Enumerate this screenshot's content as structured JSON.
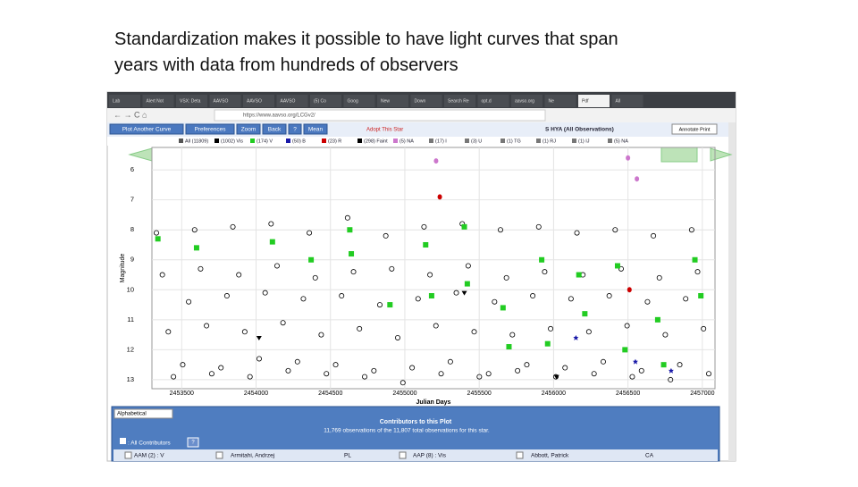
{
  "slide": {
    "title_lines": [
      "Standardization makes it possible to have light curves that span",
      "years with data from hundreds of observers"
    ]
  },
  "browser": {
    "tabs": [
      "Lab",
      "Alert Not",
      "VSX: Deta",
      "AAVSO",
      "AAVSO",
      "AAVSO",
      "(5) Co",
      "Goog",
      "New",
      "Down",
      "Search Re",
      "opt.d",
      "aavso.org",
      "Ne",
      "Pdf",
      "All"
    ],
    "address": "https://www.aavso.org/LCGv2/"
  },
  "toolbar": {
    "buttons": [
      "Plot Another Curve",
      "Preferences",
      "Zoom",
      "Back",
      "?",
      "Mean"
    ],
    "adopt": "Adopt This Star",
    "star": "S HYA (All Observations)",
    "print": "Annotate Print"
  },
  "legend_extra": [
    "All (11809)",
    "(17) I",
    "(3) U",
    "(1) TG",
    "(1) RJ",
    "(1) IJ",
    "(5) NA"
  ],
  "chart_data": {
    "type": "scatter",
    "ylabel": "Magnitude",
    "xlabel": "Julian Days",
    "xlim": [
      2453300,
      2457085
    ],
    "ylim": [
      13.3,
      5.4
    ],
    "xticks": [
      2453500,
      2454000,
      2454500,
      2455000,
      2455500,
      2456000,
      2456500,
      2457000
    ],
    "yticks": [
      6,
      7,
      8,
      9,
      10,
      11,
      12,
      13
    ],
    "grid": true,
    "series": [
      {
        "name": "(1002) Vis",
        "color": "#000000",
        "marker": "circle",
        "x": [
          2453330,
          2453370,
          2453410,
          2453445,
          2453507,
          2453547,
          2453587,
          2453627,
          2453667,
          2453702,
          2453764,
          2453804,
          2453844,
          2453884,
          2453924,
          2453959,
          2454021,
          2454061,
          2454101,
          2454141,
          2454181,
          2454216,
          2454278,
          2454318,
          2454358,
          2454398,
          2454438,
          2454473,
          2454535,
          2454575,
          2454615,
          2454655,
          2454695,
          2454730,
          2454792,
          2454832,
          2454872,
          2454912,
          2454952,
          2454987,
          2455049,
          2455089,
          2455129,
          2455169,
          2455209,
          2455244,
          2455306,
          2455346,
          2455386,
          2455426,
          2455466,
          2455501,
          2455563,
          2455603,
          2455643,
          2455683,
          2455723,
          2455758,
          2455820,
          2455860,
          2455900,
          2455940,
          2455980,
          2456015,
          2456077,
          2456117,
          2456157,
          2456197,
          2456237,
          2456272,
          2456334,
          2456374,
          2456414,
          2456454,
          2456494,
          2456529,
          2456591,
          2456631,
          2456671,
          2456711,
          2456751,
          2456786,
          2456848,
          2456888,
          2456928,
          2456968,
          2457008,
          2457043
        ],
        "values": [
          8.1,
          9.5,
          11.4,
          12.9,
          12.5,
          10.4,
          8.0,
          9.3,
          11.2,
          12.8,
          12.6,
          10.2,
          7.9,
          9.5,
          11.4,
          12.9,
          12.3,
          10.1,
          7.8,
          9.2,
          11.1,
          12.7,
          12.4,
          10.3,
          8.1,
          9.6,
          11.5,
          12.8,
          12.5,
          10.2,
          7.6,
          9.4,
          11.3,
          12.9,
          12.7,
          10.5,
          8.2,
          9.3,
          11.6,
          13.1,
          12.6,
          10.3,
          7.9,
          9.5,
          11.2,
          12.8,
          12.4,
          10.1,
          7.8,
          9.2,
          11.4,
          12.9,
          12.8,
          10.4,
          8.0,
          9.6,
          11.5,
          12.7,
          12.5,
          10.2,
          7.9,
          9.4,
          11.3,
          12.9,
          12.6,
          10.3,
          8.1,
          9.5,
          11.4,
          12.8,
          12.4,
          10.2,
          8.0,
          9.3,
          11.2,
          12.9,
          12.7,
          10.4,
          8.2,
          9.6,
          11.5,
          13.0,
          12.5,
          10.3,
          8.0,
          9.4,
          11.3,
          12.8
        ]
      },
      {
        "name": "(174) V",
        "color": "#22cc22",
        "marker": "square",
        "x": [
          2453340,
          2453600,
          2454110,
          2454370,
          2454630,
          2454640,
          2454900,
          2455140,
          2455180,
          2455400,
          2455420,
          2455660,
          2455700,
          2455920,
          2455960,
          2456170,
          2456210,
          2456430,
          2456480,
          2456700,
          2456740,
          2456950,
          2456990
        ],
        "values": [
          8.3,
          8.6,
          8.4,
          9.0,
          8.0,
          8.8,
          10.5,
          8.5,
          10.2,
          7.9,
          9.8,
          10.6,
          11.9,
          9.0,
          11.8,
          9.5,
          10.8,
          9.2,
          12.0,
          11.0,
          12.5,
          9.0,
          10.2
        ]
      },
      {
        "name": "(50) B",
        "color": "#1a1aa8",
        "marker": "star",
        "x": [
          2456150,
          2456550,
          2456790
        ],
        "values": [
          11.6,
          12.4,
          12.7
        ]
      },
      {
        "name": "(23) R",
        "color": "#cc0000",
        "marker": "dot",
        "x": [
          2455235,
          2456510
        ],
        "values": [
          6.9,
          10.0
        ]
      },
      {
        "name": "(298) Faint",
        "color": "#000000",
        "marker": "triangle",
        "x": [
          2454020,
          2455400,
          2456020
        ],
        "values": [
          11.6,
          10.1,
          12.9
        ]
      },
      {
        "name": "(5) NA",
        "color": "#cc77cc",
        "marker": "dot",
        "x": [
          2455210,
          2456500,
          2456560
        ],
        "values": [
          5.7,
          5.6,
          6.3
        ]
      }
    ]
  },
  "contributors": {
    "sort": "Alphabetical",
    "title": "Contributors to this Plot",
    "summary": "11,769 observations of the 11,807 total observations for this star.",
    "all": ": All Contributors",
    "help": "?",
    "row": [
      "AAM (2) : V",
      "Armitahi, Andrzej",
      "PL",
      "AAP (8) : Vis",
      "Abbott, Patrick",
      "CA"
    ]
  }
}
